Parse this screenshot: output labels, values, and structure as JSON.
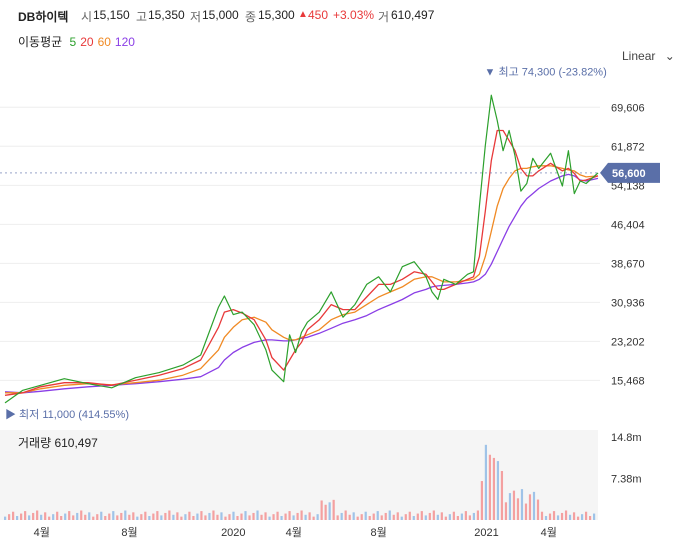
{
  "header": {
    "name": "DB하이텍",
    "open_label": "시",
    "open": "15,150",
    "high_label": "고",
    "high": "15,350",
    "low_label": "저",
    "low": "15,000",
    "close_label": "종",
    "close": "15,300",
    "change_arrow": "▲",
    "change": "450",
    "change_pct": "+3.03%",
    "volume_label": "거",
    "volume": "610,497"
  },
  "legend": {
    "title": "이동평균",
    "ma": [
      {
        "label": "5",
        "color": "#2ca02c"
      },
      {
        "label": "20",
        "color": "#e8393a"
      },
      {
        "label": "60",
        "color": "#f08a24"
      },
      {
        "label": "120",
        "color": "#8a3ee6"
      }
    ]
  },
  "scale": {
    "label": "Linear",
    "icon": "chevron-down-icon"
  },
  "annotations": {
    "high_label": "▼ 최고 74,300 (-23.82%)",
    "low_label": "▶ 최저 11,000 (414.55%)",
    "current_price": "56,600"
  },
  "volume_panel": {
    "label": "거래량 610,497"
  },
  "colors": {
    "up": "#e8393a",
    "down": "#1f8fc9",
    "current_badge": "#5a6fa8",
    "volume_up": "#f4a0a0",
    "volume_down": "#9fc3e8"
  },
  "chart_data": {
    "type": "line",
    "price_axis": {
      "ticks": [
        "69,606",
        "61,872",
        "54,138",
        "46,404",
        "38,670",
        "30,936",
        "23,202",
        "15,468"
      ],
      "tick_values": [
        69606,
        61872,
        54138,
        46404,
        38670,
        30936,
        23202,
        15468
      ],
      "ylim": [
        9000,
        77000
      ]
    },
    "volume_axis": {
      "ticks": [
        "14.8m",
        "7.38m"
      ],
      "tick_values": [
        14.8,
        7.38
      ],
      "unit": "m"
    },
    "x_ticks": [
      {
        "label": "4월",
        "t": 0.062
      },
      {
        "label": "8월",
        "t": 0.21
      },
      {
        "label": "2020",
        "t": 0.385
      },
      {
        "label": "4월",
        "t": 0.487
      },
      {
        "label": "8월",
        "t": 0.63
      },
      {
        "label": "2021",
        "t": 0.812
      },
      {
        "label": "4월",
        "t": 0.917
      }
    ],
    "t": [
      0,
      0.03,
      0.06,
      0.1,
      0.14,
      0.18,
      0.22,
      0.26,
      0.3,
      0.33,
      0.36,
      0.37,
      0.385,
      0.4,
      0.42,
      0.44,
      0.45,
      0.47,
      0.48,
      0.49,
      0.5,
      0.51,
      0.53,
      0.55,
      0.57,
      0.59,
      0.61,
      0.63,
      0.65,
      0.67,
      0.69,
      0.71,
      0.72,
      0.73,
      0.74,
      0.76,
      0.78,
      0.79,
      0.8,
      0.81,
      0.82,
      0.83,
      0.84,
      0.85,
      0.86,
      0.87,
      0.88,
      0.89,
      0.9,
      0.92,
      0.94,
      0.95,
      0.96,
      0.97,
      0.98,
      1.0
    ],
    "series": [
      {
        "name": "5",
        "color": "#2ca02c",
        "values": [
          11000,
          13500,
          14500,
          15800,
          14800,
          14000,
          16000,
          17000,
          18500,
          20500,
          30000,
          32200,
          28500,
          29000,
          26500,
          21500,
          17500,
          15200,
          24500,
          21000,
          25000,
          27000,
          29000,
          33000,
          28000,
          30500,
          34500,
          36000,
          33000,
          38000,
          39000,
          36000,
          33000,
          31500,
          35500,
          34500,
          36500,
          37000,
          50000,
          62000,
          72000,
          67000,
          61000,
          65000,
          60000,
          53000,
          54500,
          59500,
          57500,
          60500,
          54000,
          61000,
          52500,
          55000,
          54500,
          56600
        ]
      },
      {
        "name": "20",
        "color": "#e8393a",
        "values": [
          12500,
          13000,
          14200,
          15000,
          15000,
          14500,
          15500,
          16500,
          17800,
          19500,
          26000,
          29000,
          29500,
          28800,
          27500,
          23500,
          20000,
          17500,
          19500,
          21500,
          23000,
          25500,
          27500,
          30500,
          29500,
          29500,
          32000,
          34500,
          34500,
          35500,
          37000,
          36500,
          35000,
          33500,
          33500,
          34500,
          35500,
          36000,
          40000,
          49000,
          59000,
          65000,
          65000,
          63000,
          61000,
          57500,
          56000,
          56000,
          57000,
          58500,
          57000,
          57500,
          56500,
          55000,
          55200,
          56000
        ]
      },
      {
        "name": "60",
        "color": "#f08a24",
        "values": [
          13000,
          13000,
          13800,
          14500,
          14800,
          14600,
          15000,
          15500,
          16500,
          17800,
          21500,
          24000,
          26000,
          27500,
          28000,
          27000,
          25500,
          24000,
          23500,
          23500,
          24000,
          24500,
          25500,
          27500,
          28500,
          29000,
          30500,
          32000,
          33000,
          34000,
          35500,
          36000,
          36000,
          35500,
          35000,
          35000,
          35300,
          35500,
          36500,
          40000,
          45000,
          50000,
          53500,
          55500,
          57000,
          57500,
          57500,
          57800,
          58000,
          58000,
          57500,
          57200,
          57000,
          56200,
          55800,
          56000
        ]
      },
      {
        "name": "120",
        "color": "#8a3ee6",
        "values": [
          13200,
          13000,
          13300,
          13800,
          14200,
          14500,
          14800,
          15200,
          15700,
          16200,
          18000,
          19500,
          21000,
          22000,
          23000,
          23500,
          23500,
          23300,
          23300,
          23500,
          23800,
          24000,
          24800,
          25800,
          26800,
          27500,
          28300,
          29500,
          30500,
          31500,
          32800,
          33500,
          34000,
          34200,
          34300,
          34500,
          34800,
          35000,
          35500,
          36500,
          38500,
          41000,
          43500,
          46000,
          48000,
          50000,
          51500,
          52500,
          53500,
          55000,
          56000,
          56300,
          56000,
          55200,
          55000,
          55500
        ]
      }
    ]
  }
}
